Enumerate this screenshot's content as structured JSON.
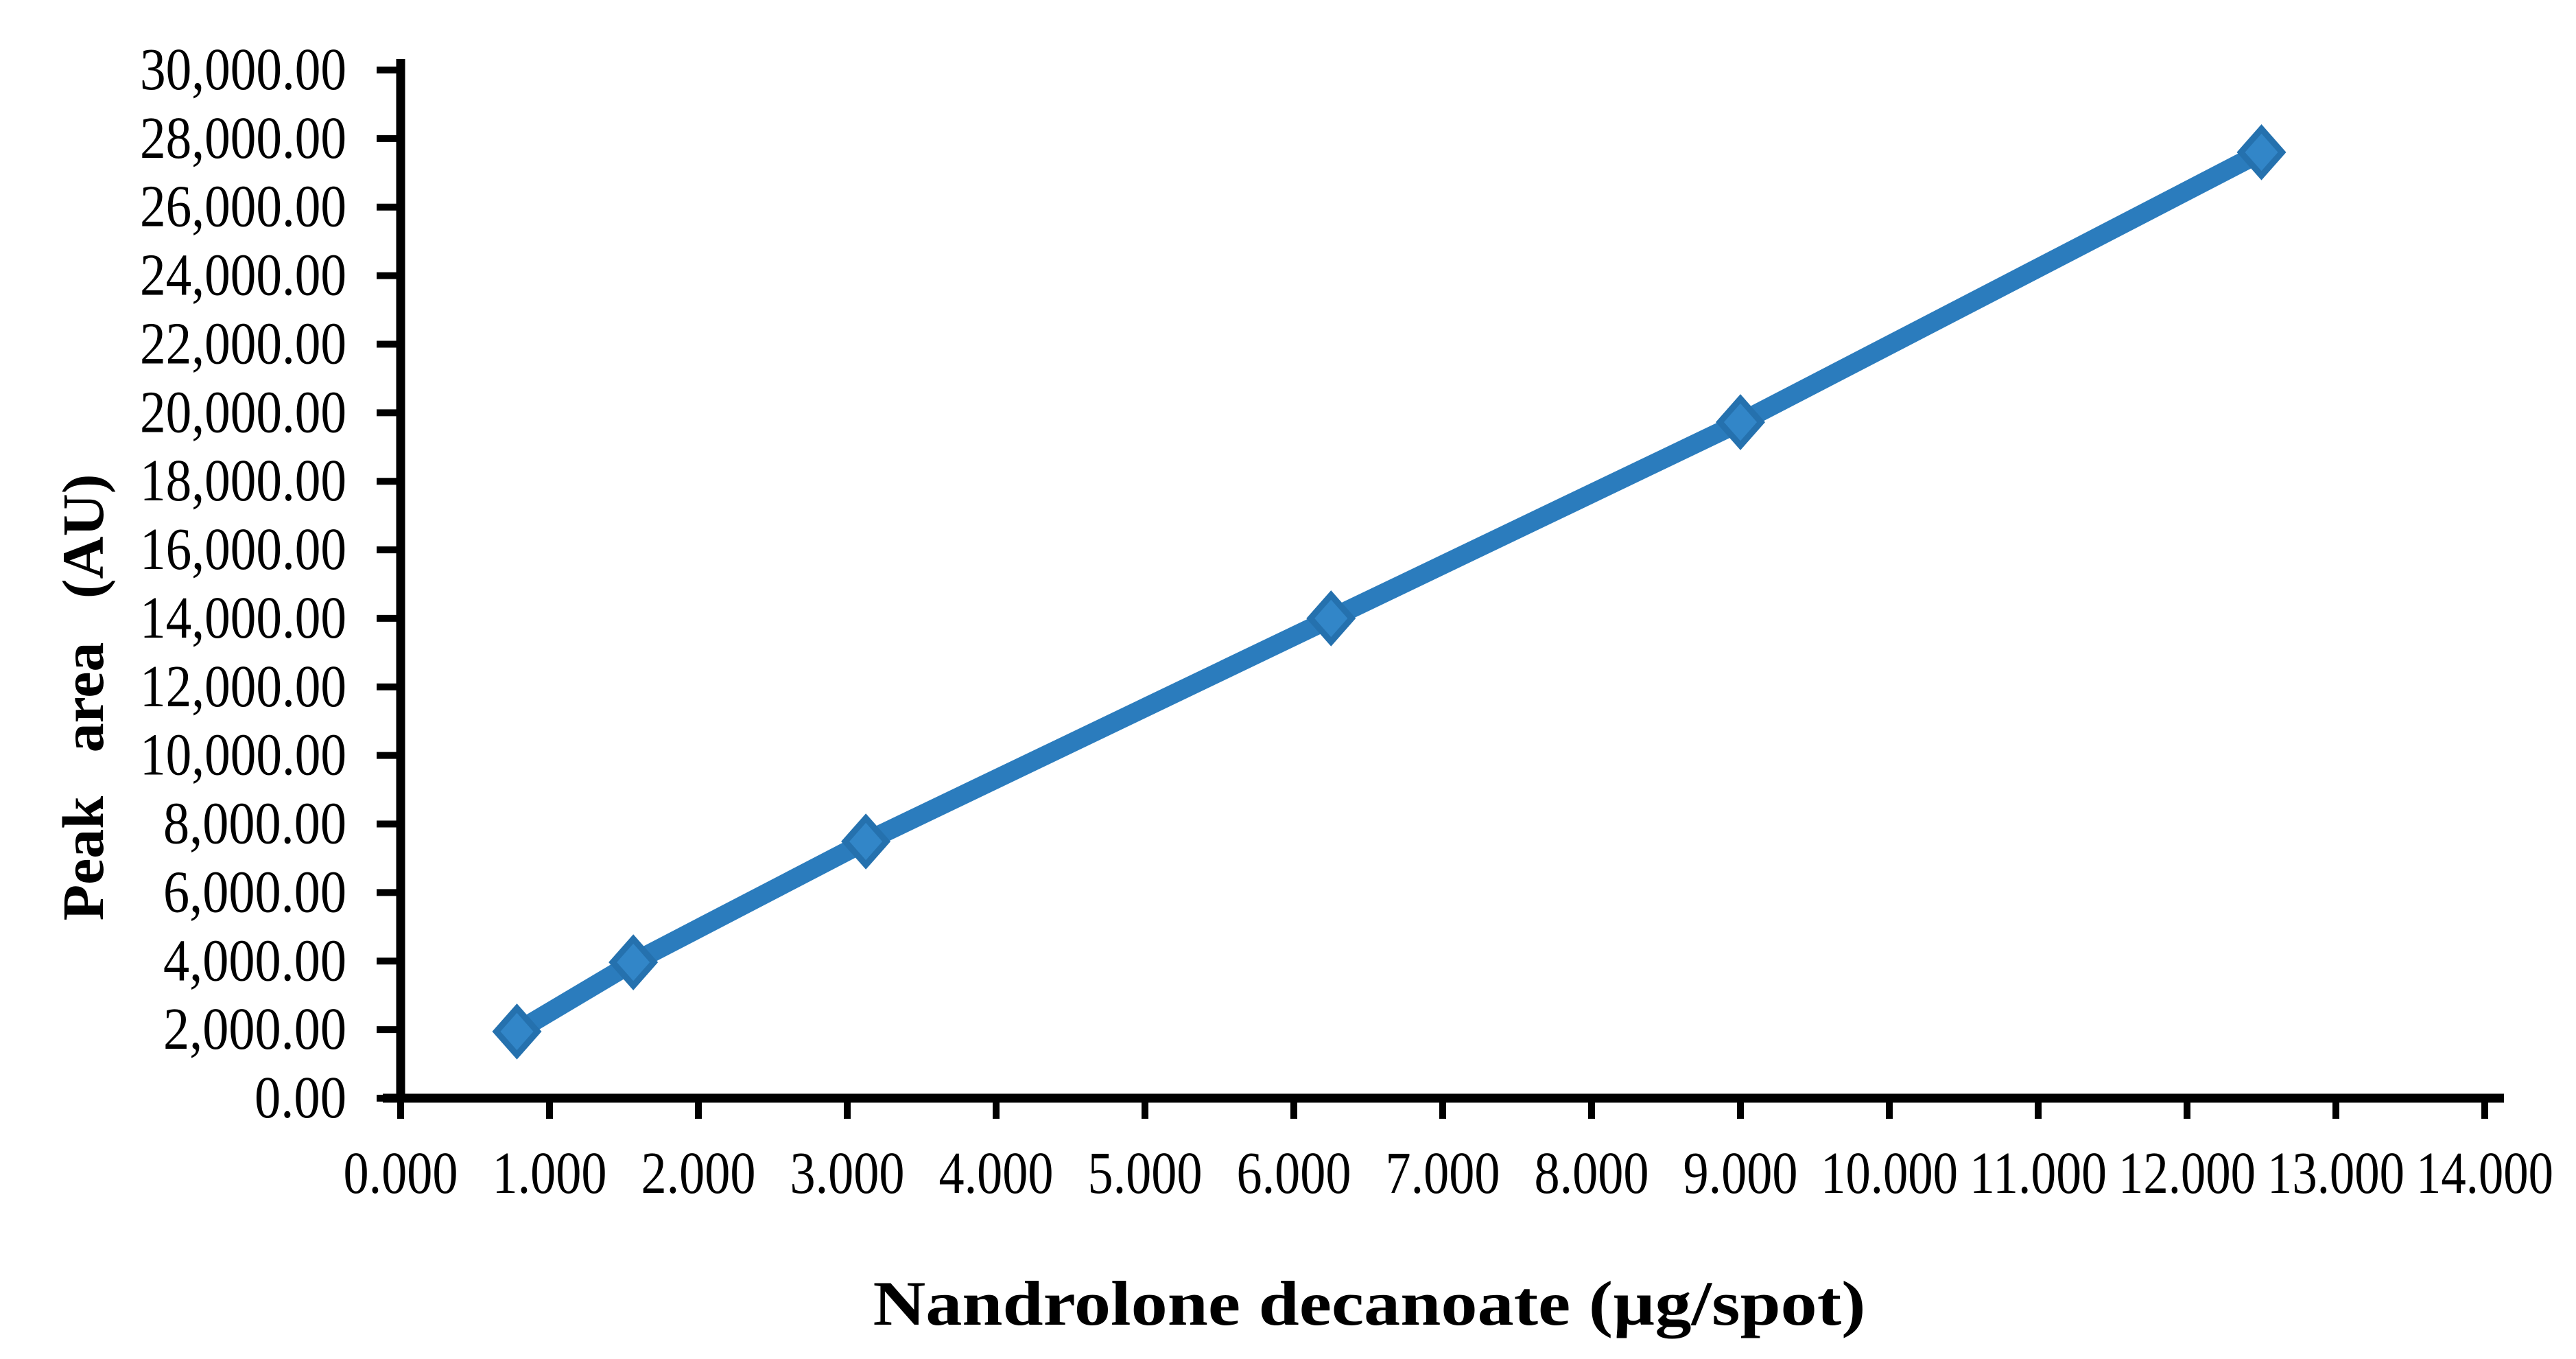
{
  "figure": {
    "background": "#ffffff"
  },
  "chart_data": {
    "type": "line",
    "title": "",
    "xlabel": "Nandrolone decanoate (µg/spot)",
    "ylabel": "Peak area (AU)",
    "xlim": [
      0,
      14
    ],
    "ylim": [
      0,
      30000
    ],
    "x_tick_step": 1,
    "y_tick_step": 2000,
    "x_tick_labels": [
      "0.000",
      "1.000",
      "2.000",
      "3.000",
      "4.000",
      "5.000",
      "6.000",
      "7.000",
      "8.000",
      "9.000",
      "10.000",
      "11.000",
      "12.000",
      "13.000",
      "14.000"
    ],
    "y_tick_labels": [
      "0.00",
      "2,000.00",
      "4,000.00",
      "6,000.00",
      "8,000.00",
      "10,000.00",
      "12,000.00",
      "14,000.00",
      "16,000.00",
      "18,000.00",
      "20,000.00",
      "22,000.00",
      "24,000.00",
      "26,000.00",
      "28,000.00",
      "30,000.00"
    ],
    "grid": false,
    "legend_position": "none",
    "axis_color": "#000000",
    "text_color": "#000000",
    "series": [
      {
        "marker": "diamond",
        "line_color": "#2B7CBD",
        "marker_fill": "#3286C8",
        "marker_stroke": "#2571AE",
        "x": [
          0.781,
          1.563,
          3.125,
          6.25,
          9.0,
          12.5
        ],
        "y": [
          1945,
          3965,
          7490,
          14000,
          19725,
          27600
        ]
      }
    ]
  }
}
